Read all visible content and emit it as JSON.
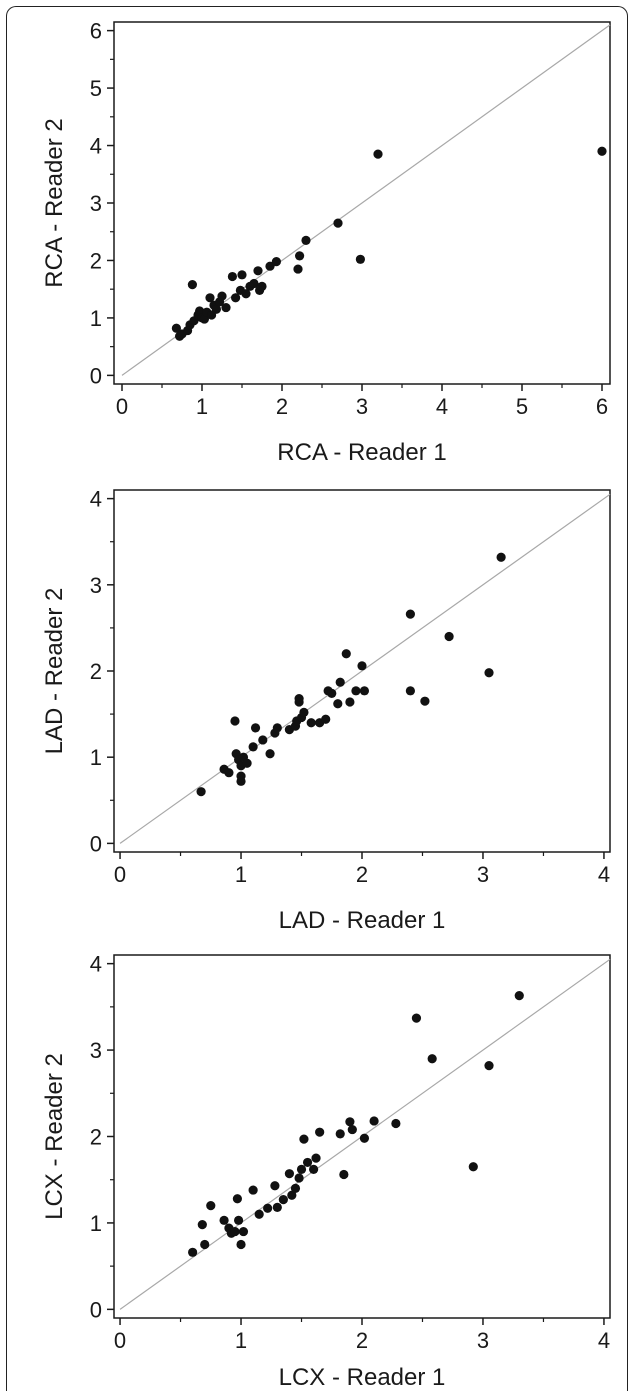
{
  "chart_data": [
    {
      "type": "scatter",
      "xlabel": "RCA - Reader 1",
      "ylabel": "RCA - Reader 2",
      "xlim": [
        -0.1,
        6.1
      ],
      "ylim": [
        -0.15,
        6.15
      ],
      "xticks": [
        0,
        1,
        2,
        3,
        4,
        5,
        6
      ],
      "yticks": [
        0,
        1,
        2,
        3,
        4,
        5,
        6
      ],
      "identity_line": true,
      "points": [
        [
          0.68,
          0.82
        ],
        [
          0.72,
          0.68
        ],
        [
          0.75,
          0.72
        ],
        [
          0.82,
          0.78
        ],
        [
          0.85,
          0.88
        ],
        [
          0.88,
          1.58
        ],
        [
          0.9,
          0.95
        ],
        [
          0.95,
          1.05
        ],
        [
          0.97,
          1.12
        ],
        [
          1.0,
          1.0
        ],
        [
          1.03,
          0.98
        ],
        [
          1.06,
          1.1
        ],
        [
          1.1,
          1.35
        ],
        [
          1.12,
          1.05
        ],
        [
          1.15,
          1.22
        ],
        [
          1.18,
          1.15
        ],
        [
          1.22,
          1.28
        ],
        [
          1.25,
          1.38
        ],
        [
          1.3,
          1.18
        ],
        [
          1.38,
          1.72
        ],
        [
          1.42,
          1.35
        ],
        [
          1.48,
          1.48
        ],
        [
          1.5,
          1.75
        ],
        [
          1.55,
          1.42
        ],
        [
          1.6,
          1.55
        ],
        [
          1.65,
          1.6
        ],
        [
          1.7,
          1.82
        ],
        [
          1.72,
          1.48
        ],
        [
          1.75,
          1.55
        ],
        [
          1.85,
          1.9
        ],
        [
          1.93,
          1.98
        ],
        [
          2.2,
          1.85
        ],
        [
          2.22,
          2.08
        ],
        [
          2.3,
          2.35
        ],
        [
          2.7,
          2.65
        ],
        [
          2.98,
          2.02
        ],
        [
          3.2,
          3.85
        ],
        [
          6.0,
          3.9
        ]
      ]
    },
    {
      "type": "scatter",
      "xlabel": "LAD - Reader 1",
      "ylabel": "LAD - Reader 2",
      "xlim": [
        -0.05,
        4.05
      ],
      "ylim": [
        -0.1,
        4.1
      ],
      "xticks": [
        0,
        1,
        2,
        3,
        4
      ],
      "yticks": [
        0,
        1,
        2,
        3,
        4
      ],
      "identity_line": true,
      "points": [
        [
          0.67,
          0.6
        ],
        [
          0.86,
          0.86
        ],
        [
          0.9,
          0.82
        ],
        [
          0.95,
          1.42
        ],
        [
          0.96,
          1.04
        ],
        [
          0.98,
          0.97
        ],
        [
          1.0,
          0.9
        ],
        [
          1.0,
          0.78
        ],
        [
          1.0,
          0.72
        ],
        [
          1.02,
          1.0
        ],
        [
          1.05,
          0.93
        ],
        [
          1.1,
          1.12
        ],
        [
          1.12,
          1.34
        ],
        [
          1.18,
          1.2
        ],
        [
          1.24,
          1.04
        ],
        [
          1.28,
          1.28
        ],
        [
          1.3,
          1.34
        ],
        [
          1.4,
          1.32
        ],
        [
          1.45,
          1.36
        ],
        [
          1.46,
          1.42
        ],
        [
          1.48,
          1.64
        ],
        [
          1.48,
          1.68
        ],
        [
          1.5,
          1.46
        ],
        [
          1.52,
          1.52
        ],
        [
          1.58,
          1.4
        ],
        [
          1.65,
          1.4
        ],
        [
          1.7,
          1.44
        ],
        [
          1.72,
          1.77
        ],
        [
          1.75,
          1.74
        ],
        [
          1.8,
          1.62
        ],
        [
          1.82,
          1.87
        ],
        [
          1.87,
          2.2
        ],
        [
          1.9,
          1.64
        ],
        [
          1.95,
          1.77
        ],
        [
          2.0,
          2.06
        ],
        [
          2.02,
          1.77
        ],
        [
          2.4,
          2.66
        ],
        [
          2.4,
          1.77
        ],
        [
          2.52,
          1.65
        ],
        [
          2.72,
          2.4
        ],
        [
          3.05,
          1.98
        ],
        [
          3.15,
          3.32
        ]
      ]
    },
    {
      "type": "scatter",
      "xlabel": "LCX - Reader 1",
      "ylabel": "LCX - Reader 2",
      "xlim": [
        -0.05,
        4.05
      ],
      "ylim": [
        -0.1,
        4.1
      ],
      "xticks": [
        0,
        1,
        2,
        3,
        4
      ],
      "yticks": [
        0,
        1,
        2,
        3,
        4
      ],
      "identity_line": true,
      "points": [
        [
          0.6,
          0.66
        ],
        [
          0.68,
          0.98
        ],
        [
          0.7,
          0.75
        ],
        [
          0.75,
          1.2
        ],
        [
          0.86,
          1.03
        ],
        [
          0.9,
          0.94
        ],
        [
          0.92,
          0.88
        ],
        [
          0.95,
          0.9
        ],
        [
          0.97,
          1.28
        ],
        [
          0.98,
          1.03
        ],
        [
          1.0,
          0.75
        ],
        [
          1.02,
          0.9
        ],
        [
          1.1,
          1.38
        ],
        [
          1.15,
          1.1
        ],
        [
          1.22,
          1.17
        ],
        [
          1.28,
          1.43
        ],
        [
          1.3,
          1.18
        ],
        [
          1.35,
          1.27
        ],
        [
          1.4,
          1.57
        ],
        [
          1.42,
          1.32
        ],
        [
          1.45,
          1.4
        ],
        [
          1.48,
          1.52
        ],
        [
          1.5,
          1.62
        ],
        [
          1.52,
          1.97
        ],
        [
          1.55,
          1.7
        ],
        [
          1.6,
          1.62
        ],
        [
          1.62,
          1.75
        ],
        [
          1.65,
          2.05
        ],
        [
          1.82,
          2.03
        ],
        [
          1.85,
          1.56
        ],
        [
          1.9,
          2.17
        ],
        [
          1.92,
          2.08
        ],
        [
          2.02,
          1.98
        ],
        [
          2.1,
          2.18
        ],
        [
          2.28,
          2.15
        ],
        [
          2.45,
          3.37
        ],
        [
          2.58,
          2.9
        ],
        [
          2.92,
          1.65
        ],
        [
          3.05,
          2.82
        ],
        [
          3.3,
          3.63
        ]
      ]
    }
  ]
}
